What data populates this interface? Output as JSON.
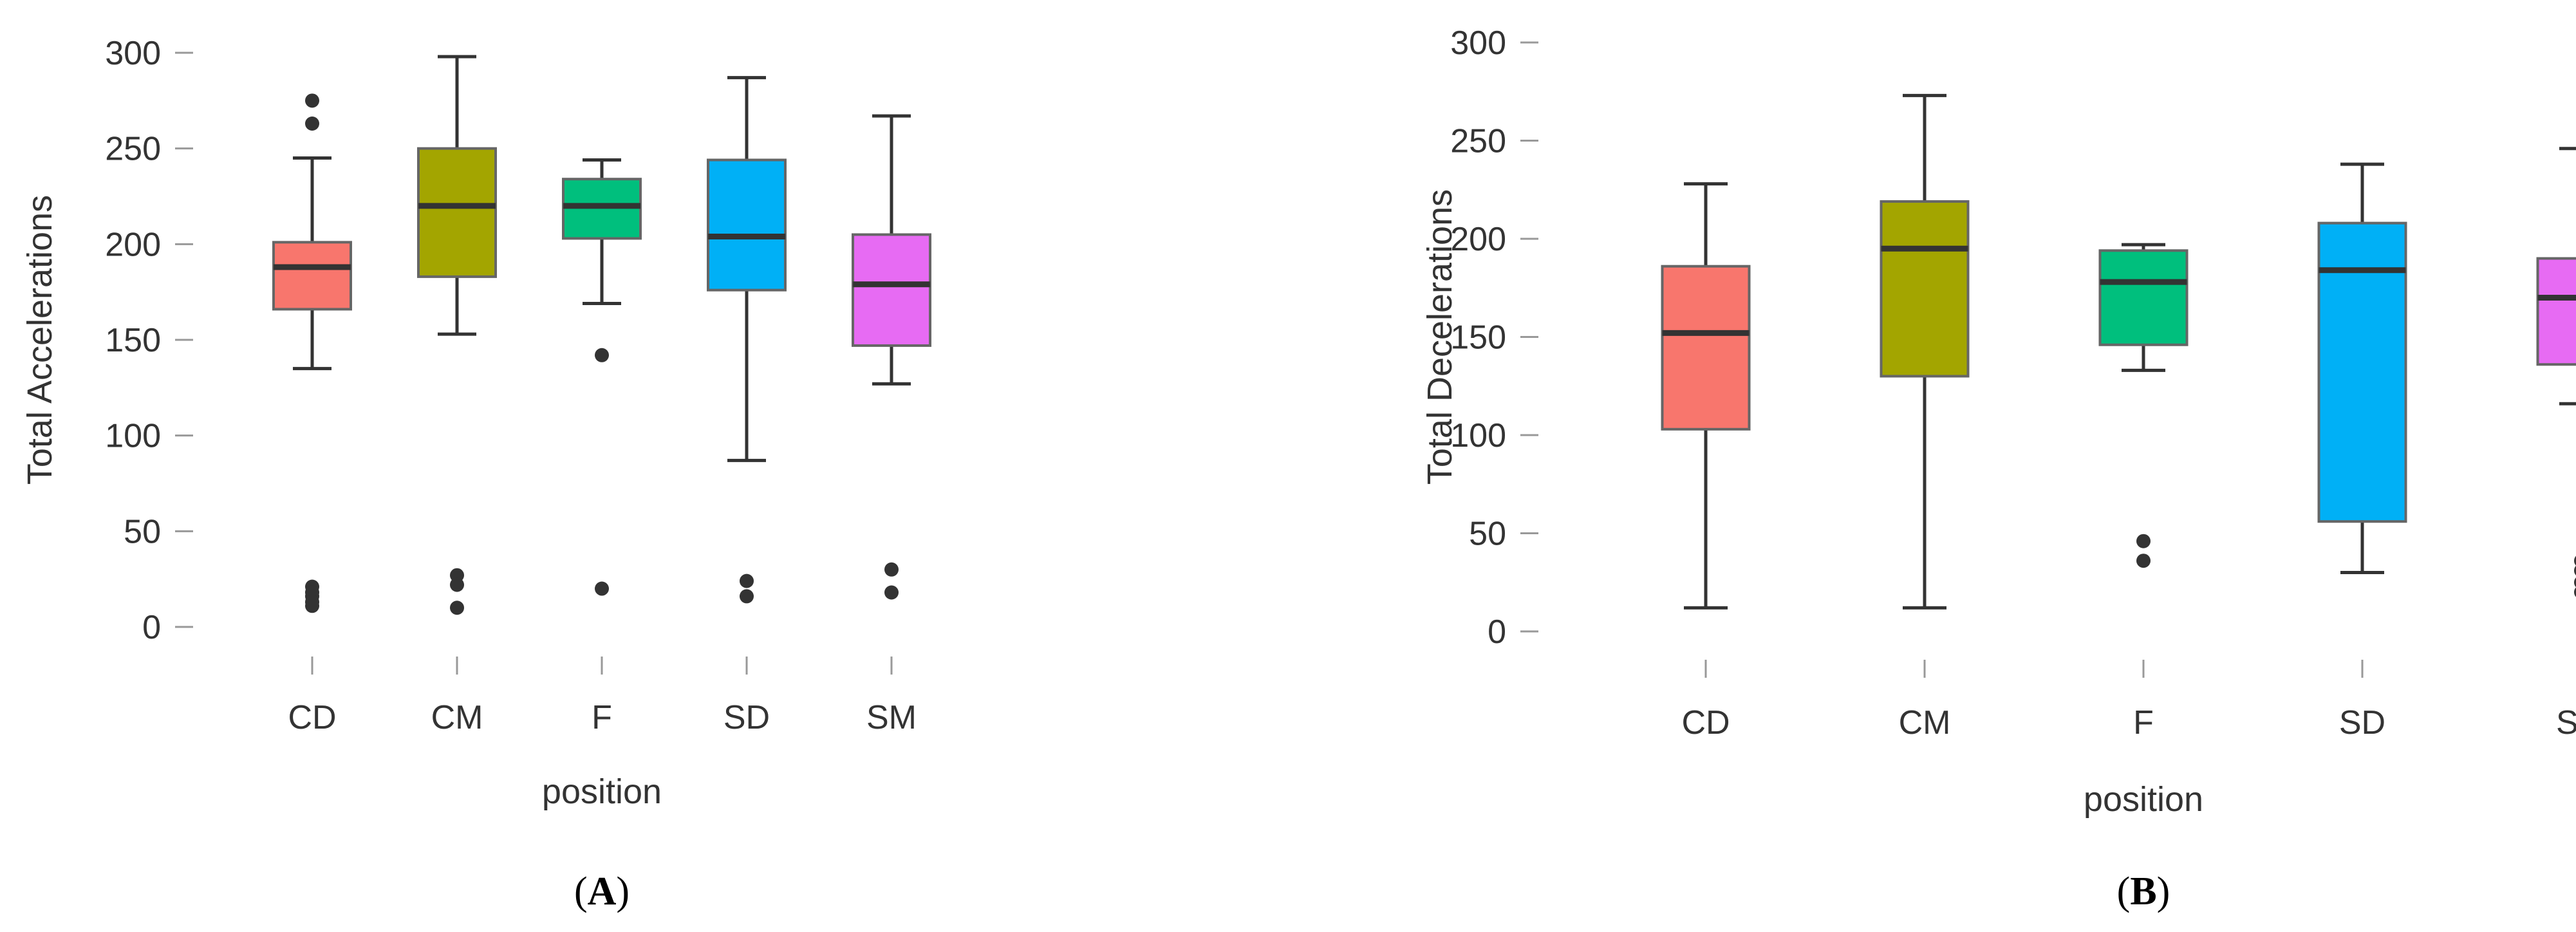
{
  "chart_data": [
    {
      "type": "box",
      "panel": "A",
      "panel_label": {
        "open": "(",
        "letter": "A",
        "close": ")"
      },
      "title": "",
      "xlabel": "position",
      "ylabel": "Total Accelerations",
      "ylim": [
        0,
        300
      ],
      "yticks": [
        0,
        50,
        100,
        150,
        200,
        250,
        300
      ],
      "categories": [
        "CD",
        "CM",
        "F",
        "SD",
        "SM"
      ],
      "colors": [
        "#F8766D",
        "#A3A500",
        "#00BF7D",
        "#00B0F6",
        "#E76BF3"
      ],
      "boxes": [
        {
          "min": 135,
          "q1": 166,
          "median": 188,
          "q3": 201,
          "max": 245,
          "outliers": [
            275,
            263,
            21,
            18,
            16,
            13,
            11
          ]
        },
        {
          "min": 153,
          "q1": 183,
          "median": 220,
          "q3": 250,
          "max": 298,
          "outliers": [
            27,
            22,
            10
          ]
        },
        {
          "min": 169,
          "q1": 203,
          "median": 220,
          "q3": 234,
          "max": 244,
          "outliers": [
            142,
            20
          ]
        },
        {
          "min": 87,
          "q1": 176,
          "median": 204,
          "q3": 244,
          "max": 287,
          "outliers": [
            24,
            16
          ]
        },
        {
          "min": 127,
          "q1": 147,
          "median": 179,
          "q3": 205,
          "max": 267,
          "outliers": [
            30,
            18
          ]
        }
      ]
    },
    {
      "type": "box",
      "panel": "B",
      "panel_label": {
        "open": "(",
        "letter": "B",
        "close": ")"
      },
      "title": "",
      "xlabel": "position",
      "ylabel": "Total Decelerations",
      "ylim": [
        0,
        300
      ],
      "yticks": [
        0,
        50,
        100,
        150,
        200,
        250,
        300
      ],
      "categories": [
        "CD",
        "CM",
        "F",
        "SD",
        "SM"
      ],
      "colors": [
        "#F8766D",
        "#A3A500",
        "#00BF7D",
        "#00B0F6",
        "#E76BF3"
      ],
      "boxes": [
        {
          "min": 12,
          "q1": 103,
          "median": 152,
          "q3": 186,
          "max": 228,
          "outliers": []
        },
        {
          "min": 12,
          "q1": 130,
          "median": 195,
          "q3": 219,
          "max": 273,
          "outliers": []
        },
        {
          "min": 133,
          "q1": 146,
          "median": 178,
          "q3": 194,
          "max": 197,
          "outliers": [
            46,
            36
          ]
        },
        {
          "min": 30,
          "q1": 56,
          "median": 184,
          "q3": 208,
          "max": 238,
          "outliers": []
        },
        {
          "min": 116,
          "q1": 136,
          "median": 170,
          "q3": 190,
          "max": 246,
          "outliers": [
            36,
            31,
            25,
            20
          ]
        }
      ]
    }
  ]
}
